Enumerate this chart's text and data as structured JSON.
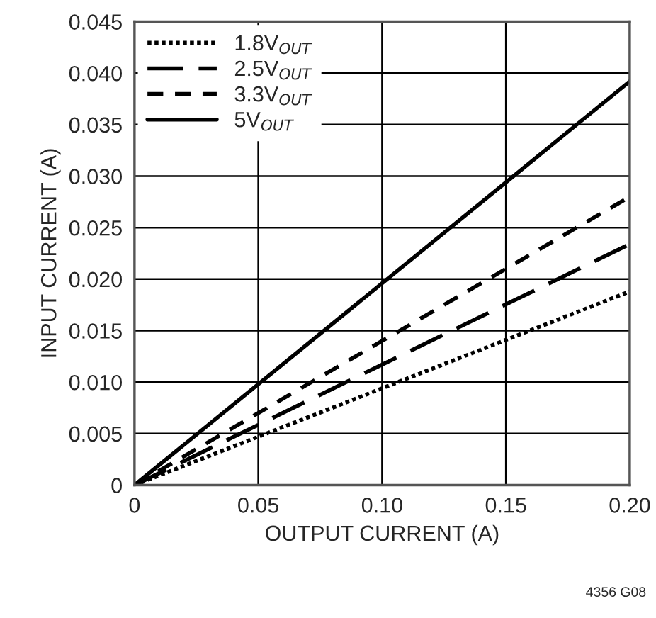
{
  "chart_data": {
    "type": "line",
    "xlabel": "OUTPUT CURRENT (A)",
    "ylabel": "INPUT CURRENT (A)",
    "x": [
      0,
      0.2
    ],
    "series": [
      {
        "name": "1.8V$_{OUT}$",
        "color": "#000000",
        "values": [
          0,
          0.0188
        ],
        "line_style": "dotted"
      },
      {
        "name": "2.5V$_{OUT}$",
        "color": "#000000",
        "values": [
          0,
          0.0234
        ],
        "line_style": "dashed"
      },
      {
        "name": "3.3V$_{OUT}$",
        "color": "#000000",
        "values": [
          0,
          0.028
        ],
        "line_style": "dashed"
      },
      {
        "name": "5V$_{OUT}$",
        "color": "#000000",
        "values": [
          0,
          0.0392
        ],
        "line_style": "solid"
      }
    ],
    "xlim": [
      0,
      0.2
    ],
    "xticks": [
      0,
      0.05,
      {
        "value": 0.1,
        "label": "0.10"
      },
      0.15,
      {
        "value": 0.2,
        "label": "0.20"
      }
    ],
    "ylim": [
      0,
      0.045
    ],
    "yticks": [
      0,
      {
        "value": 0.005,
        "label": "0.005"
      },
      {
        "value": 0.01,
        "label": "0.010"
      },
      {
        "value": 0.015,
        "label": "0.015"
      },
      {
        "value": 0.02,
        "label": "0.020"
      },
      {
        "value": 0.025,
        "label": "0.025"
      },
      {
        "value": 0.03,
        "label": "0.030"
      },
      {
        "value": 0.035,
        "label": "0.035"
      },
      {
        "value": 0.04,
        "label": "0.040"
      },
      {
        "value": 0.045,
        "label": "0.045"
      }
    ],
    "grid": true,
    "legend": "top left",
    "annotations": [
      "4356 G08"
    ]
  }
}
